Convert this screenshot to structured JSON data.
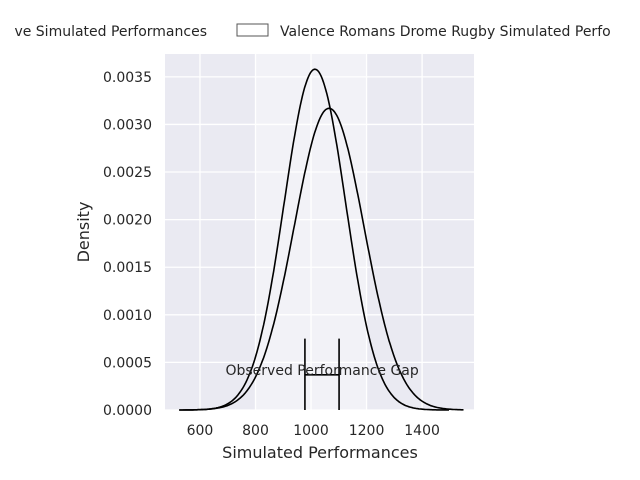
{
  "chart_data": {
    "type": "line",
    "title": "",
    "xlabel": "Simulated Performances",
    "ylabel": "Density",
    "xlim": [
      474,
      1587
    ],
    "ylim": [
      0,
      0.00374
    ],
    "xticks": [
      600,
      800,
      1000,
      1200,
      1400
    ],
    "xtick_labels": [
      "600",
      "800",
      "1000",
      "1200",
      "1400"
    ],
    "yticks": [
      0,
      0.0005,
      0.001,
      0.0015,
      0.002,
      0.0025,
      0.003,
      0.0035
    ],
    "ytick_labels": [
      "0.0000",
      "0.0005",
      "0.0010",
      "0.0015",
      "0.0020",
      "0.0025",
      "0.0030",
      "0.0035"
    ],
    "grid": true,
    "highlight_span": [
      800,
      1200
    ],
    "legend": {
      "placement": "top-outside",
      "entries": [
        "ve Simulated Performances",
        "Valence Romans Drome Rugby Simulated Perfo"
      ]
    },
    "series": [
      {
        "name": "ve Simulated Performances",
        "kind": "kde",
        "mean": 1014,
        "sd": 111,
        "peak": 0.00358,
        "range": [
          525,
          1500
        ],
        "color": "#000000"
      },
      {
        "name": "Valence Romans Drome Rugby Simulated Perfo",
        "kind": "kde",
        "mean": 1065,
        "sd": 126,
        "peak": 0.00317,
        "range": [
          525,
          1550
        ],
        "color": "#000000"
      }
    ],
    "annotation": {
      "text": "Observed Performance Gap",
      "x": 1040,
      "y": 0.0004,
      "gap_start": 978,
      "gap_end": 1101,
      "bar_top": 0.00075,
      "bar_mid": 0.00037
    }
  },
  "colors": {
    "plot_bg": "#eaeaf2",
    "span": "#f2f2f7",
    "grid": "#ffffff",
    "line": "#000000"
  }
}
